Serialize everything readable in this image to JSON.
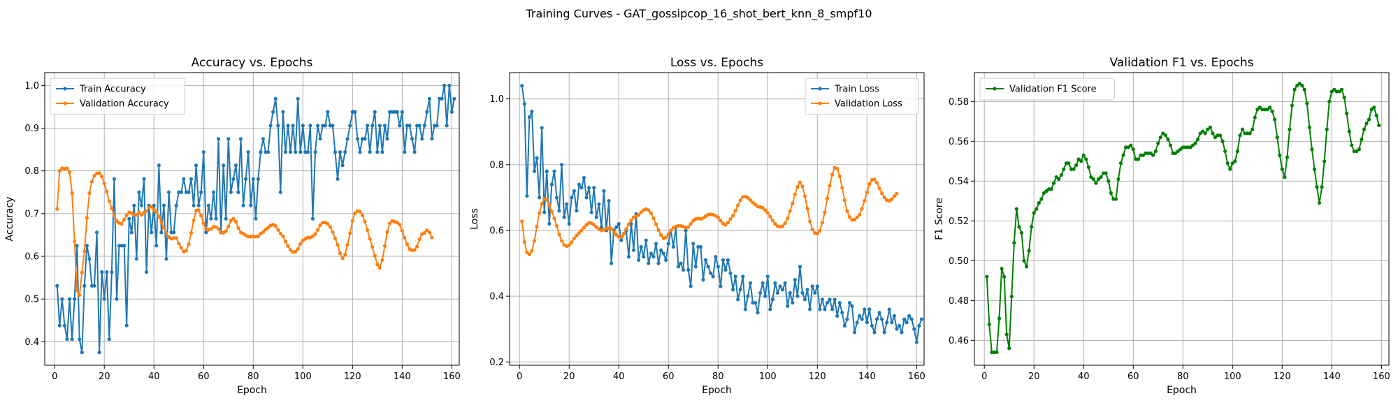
{
  "figure": {
    "suptitle": "Training Curves - GAT_gossipcop_16_shot_bert_knn_8_smpf10"
  },
  "colors": {
    "train": "#1f77b4",
    "validation": "#ff7f0e",
    "f1": "#008000",
    "grid": "#b0b0b0"
  },
  "chart_data": [
    {
      "type": "line",
      "title": "Accuracy vs. Epochs",
      "xlabel": "Epoch",
      "ylabel": "Accuracy",
      "xlim": [
        -4,
        163
      ],
      "ylim": [
        0.345,
        1.03
      ],
      "xticks": [
        0,
        20,
        40,
        60,
        80,
        100,
        120,
        140,
        160
      ],
      "yticks": [
        0.4,
        0.5,
        0.6,
        0.7,
        0.8,
        0.9,
        1.0
      ],
      "ytick_labels": [
        "0.4",
        "0.5",
        "0.6",
        "0.7",
        "0.8",
        "0.9",
        "1.0"
      ],
      "grid": true,
      "legend": "upper-left",
      "series": [
        {
          "name": "Train Accuracy",
          "color_key": "train",
          "x_start": 1,
          "values": [
            0.531,
            0.438,
            0.5,
            0.438,
            0.406,
            0.5,
            0.406,
            0.5,
            0.625,
            0.406,
            0.375,
            0.531,
            0.625,
            0.594,
            0.531,
            0.531,
            0.656,
            0.375,
            0.563,
            0.5,
            0.563,
            0.406,
            0.563,
            0.781,
            0.5,
            0.625,
            0.625,
            0.625,
            0.438,
            0.688,
            0.656,
            0.719,
            0.594,
            0.75,
            0.719,
            0.781,
            0.563,
            0.719,
            0.656,
            0.719,
            0.625,
            0.813,
            0.656,
            0.719,
            0.594,
            0.75,
            0.656,
            0.656,
            0.719,
            0.75,
            0.75,
            0.781,
            0.75,
            0.75,
            0.781,
            0.719,
            0.813,
            0.719,
            0.75,
            0.844,
            0.656,
            0.719,
            0.688,
            0.75,
            0.688,
            0.875,
            0.656,
            0.813,
            0.688,
            0.875,
            0.75,
            0.781,
            0.813,
            0.75,
            0.875,
            0.719,
            0.781,
            0.844,
            0.719,
            0.781,
            0.688,
            0.781,
            0.844,
            0.875,
            0.844,
            0.844,
            0.906,
            0.938,
            0.969,
            0.906,
            0.75,
            0.938,
            0.844,
            0.906,
            0.844,
            0.906,
            0.844,
            0.969,
            0.844,
            0.906,
            0.844,
            0.844,
            0.906,
            0.688,
            0.844,
            0.906,
            0.875,
            0.906,
            0.906,
            0.938,
            0.906,
            0.906,
            0.844,
            0.781,
            0.844,
            0.813,
            0.844,
            0.875,
            0.906,
            0.938,
            0.938,
            0.875,
            0.844,
            0.875,
            0.875,
            0.906,
            0.844,
            0.906,
            0.938,
            0.844,
            0.906,
            0.844,
            0.906,
            0.875,
            0.938,
            0.938,
            0.938,
            0.938,
            0.906,
            0.938,
            0.844,
            0.906,
            0.906,
            0.875,
            0.844,
            0.906,
            0.906,
            0.875,
            0.906,
            0.938,
            0.969,
            0.875,
            0.906,
            0.906,
            0.969,
            0.969,
            1.0,
            0.906,
            1.0,
            0.938,
            0.969
          ]
        },
        {
          "name": "Validation Accuracy",
          "color_key": "validation",
          "x_start": 1,
          "values": [
            0.711,
            0.8,
            0.806,
            0.805,
            0.806,
            0.797,
            0.748,
            0.635,
            0.52,
            0.509,
            0.562,
            0.612,
            0.69,
            0.748,
            0.775,
            0.789,
            0.794,
            0.795,
            0.787,
            0.771,
            0.751,
            0.729,
            0.712,
            0.696,
            0.683,
            0.678,
            0.676,
            0.686,
            0.696,
            0.703,
            0.701,
            0.697,
            0.697,
            0.703,
            0.697,
            0.702,
            0.706,
            0.714,
            0.716,
            0.709,
            0.703,
            0.693,
            0.68,
            0.666,
            0.654,
            0.645,
            0.641,
            0.643,
            0.643,
            0.63,
            0.62,
            0.611,
            0.613,
            0.628,
            0.655,
            0.684,
            0.707,
            0.708,
            0.695,
            0.677,
            0.663,
            0.662,
            0.664,
            0.669,
            0.669,
            0.664,
            0.657,
            0.655,
            0.659,
            0.67,
            0.684,
            0.688,
            0.681,
            0.666,
            0.656,
            0.653,
            0.649,
            0.646,
            0.646,
            0.647,
            0.646,
            0.647,
            0.653,
            0.657,
            0.663,
            0.667,
            0.672,
            0.674,
            0.671,
            0.662,
            0.653,
            0.647,
            0.635,
            0.624,
            0.615,
            0.61,
            0.611,
            0.617,
            0.629,
            0.637,
            0.641,
            0.644,
            0.644,
            0.647,
            0.652,
            0.662,
            0.673,
            0.679,
            0.679,
            0.676,
            0.669,
            0.657,
            0.642,
            0.627,
            0.607,
            0.595,
            0.604,
            0.627,
            0.654,
            0.683,
            0.701,
            0.706,
            0.705,
            0.696,
            0.681,
            0.661,
            0.641,
            0.622,
            0.601,
            0.581,
            0.573,
            0.591,
            0.624,
            0.657,
            0.677,
            0.683,
            0.681,
            0.679,
            0.674,
            0.66,
            0.643,
            0.628,
            0.617,
            0.614,
            0.615,
            0.623,
            0.64,
            0.652,
            0.655,
            0.661,
            0.656,
            0.644
          ]
        }
      ]
    },
    {
      "type": "line",
      "title": "Loss vs. Epochs",
      "xlabel": "Epoch",
      "ylabel": "Loss",
      "xlim": [
        -4,
        163
      ],
      "ylim": [
        0.19,
        1.08
      ],
      "xticks": [
        0,
        20,
        40,
        60,
        80,
        100,
        120,
        140,
        160
      ],
      "yticks": [
        0.2,
        0.4,
        0.6,
        0.8,
        1.0
      ],
      "ytick_labels": [
        "0.2",
        "0.4",
        "0.6",
        "0.8",
        "1.0"
      ],
      "grid": true,
      "legend": "upper-right",
      "series": [
        {
          "name": "Train Loss",
          "color_key": "train",
          "x_start": 1,
          "values": [
            1.04,
            0.985,
            0.705,
            0.945,
            0.962,
            0.78,
            0.82,
            0.7,
            0.912,
            0.655,
            0.78,
            0.62,
            0.74,
            0.78,
            0.7,
            0.66,
            0.8,
            0.64,
            0.68,
            0.62,
            0.7,
            0.72,
            0.66,
            0.74,
            0.73,
            0.76,
            0.7,
            0.73,
            0.655,
            0.73,
            0.64,
            0.68,
            0.61,
            0.72,
            0.6,
            0.69,
            0.5,
            0.6,
            0.61,
            0.62,
            0.57,
            0.59,
            0.6,
            0.52,
            0.62,
            0.54,
            0.65,
            0.51,
            0.55,
            0.52,
            0.57,
            0.5,
            0.53,
            0.52,
            0.56,
            0.5,
            0.54,
            0.53,
            0.51,
            0.56,
            0.6,
            0.55,
            0.61,
            0.49,
            0.5,
            0.48,
            0.6,
            0.48,
            0.43,
            0.56,
            0.49,
            0.55,
            0.55,
            0.45,
            0.51,
            0.49,
            0.47,
            0.46,
            0.52,
            0.49,
            0.43,
            0.51,
            0.48,
            0.51,
            0.47,
            0.42,
            0.46,
            0.39,
            0.42,
            0.46,
            0.36,
            0.4,
            0.44,
            0.38,
            0.38,
            0.35,
            0.41,
            0.44,
            0.4,
            0.46,
            0.36,
            0.39,
            0.44,
            0.41,
            0.43,
            0.42,
            0.44,
            0.37,
            0.41,
            0.38,
            0.45,
            0.4,
            0.49,
            0.41,
            0.39,
            0.42,
            0.36,
            0.43,
            0.41,
            0.43,
            0.36,
            0.39,
            0.36,
            0.38,
            0.39,
            0.36,
            0.39,
            0.34,
            0.38,
            0.35,
            0.31,
            0.33,
            0.38,
            0.37,
            0.29,
            0.32,
            0.34,
            0.33,
            0.36,
            0.32,
            0.36,
            0.31,
            0.29,
            0.33,
            0.35,
            0.33,
            0.29,
            0.32,
            0.36,
            0.32,
            0.34,
            0.3,
            0.31,
            0.29,
            0.33,
            0.32,
            0.34,
            0.33,
            0.3,
            0.26,
            0.31,
            0.33
          ]
        },
        {
          "name": "Validation Loss",
          "color_key": "validation",
          "x_start": 1,
          "values": [
            0.628,
            0.565,
            0.533,
            0.527,
            0.538,
            0.568,
            0.612,
            0.653,
            0.681,
            0.696,
            0.694,
            0.677,
            0.658,
            0.637,
            0.614,
            0.588,
            0.568,
            0.556,
            0.552,
            0.555,
            0.564,
            0.576,
            0.584,
            0.592,
            0.6,
            0.609,
            0.617,
            0.623,
            0.622,
            0.617,
            0.61,
            0.604,
            0.6,
            0.602,
            0.605,
            0.607,
            0.605,
            0.596,
            0.587,
            0.581,
            0.58,
            0.59,
            0.604,
            0.619,
            0.631,
            0.64,
            0.643,
            0.647,
            0.655,
            0.662,
            0.665,
            0.662,
            0.652,
            0.637,
            0.619,
            0.601,
            0.586,
            0.576,
            0.579,
            0.589,
            0.6,
            0.608,
            0.612,
            0.614,
            0.614,
            0.612,
            0.608,
            0.61,
            0.62,
            0.63,
            0.635,
            0.636,
            0.635,
            0.638,
            0.643,
            0.648,
            0.649,
            0.648,
            0.645,
            0.64,
            0.63,
            0.621,
            0.617,
            0.624,
            0.635,
            0.645,
            0.66,
            0.676,
            0.692,
            0.702,
            0.703,
            0.699,
            0.692,
            0.685,
            0.679,
            0.673,
            0.671,
            0.669,
            0.662,
            0.653,
            0.642,
            0.63,
            0.62,
            0.613,
            0.611,
            0.613,
            0.622,
            0.637,
            0.659,
            0.682,
            0.71,
            0.732,
            0.746,
            0.734,
            0.704,
            0.666,
            0.628,
            0.603,
            0.592,
            0.59,
            0.599,
            0.624,
            0.655,
            0.698,
            0.736,
            0.77,
            0.791,
            0.788,
            0.765,
            0.73,
            0.692,
            0.659,
            0.641,
            0.632,
            0.633,
            0.64,
            0.648,
            0.666,
            0.69,
            0.716,
            0.741,
            0.754,
            0.755,
            0.745,
            0.728,
            0.713,
            0.7,
            0.692,
            0.69,
            0.695,
            0.704,
            0.712
          ]
        }
      ]
    },
    {
      "type": "line",
      "title": "Validation F1 vs. Epochs",
      "xlabel": "Epoch",
      "ylabel": "F1 Score",
      "xlim": [
        -4,
        163
      ],
      "ylim": [
        0.4475,
        0.5945
      ],
      "xticks": [
        0,
        20,
        40,
        60,
        80,
        100,
        120,
        140,
        160
      ],
      "yticks": [
        0.46,
        0.48,
        0.5,
        0.52,
        0.54,
        0.56,
        0.58
      ],
      "ytick_labels": [
        "0.46",
        "0.48",
        "0.50",
        "0.52",
        "0.54",
        "0.56",
        "0.58"
      ],
      "grid": true,
      "legend": "upper-left",
      "series": [
        {
          "name": "Validation F1 Score",
          "color_key": "f1",
          "x_start": 1,
          "values": [
            0.492,
            0.468,
            0.454,
            0.454,
            0.454,
            0.471,
            0.496,
            0.492,
            0.463,
            0.456,
            0.482,
            0.509,
            0.526,
            0.517,
            0.514,
            0.5,
            0.497,
            0.505,
            0.517,
            0.524,
            0.526,
            0.529,
            0.531,
            0.534,
            0.535,
            0.536,
            0.536,
            0.539,
            0.542,
            0.541,
            0.543,
            0.546,
            0.549,
            0.549,
            0.546,
            0.546,
            0.548,
            0.551,
            0.55,
            0.553,
            0.551,
            0.547,
            0.542,
            0.541,
            0.539,
            0.541,
            0.542,
            0.544,
            0.544,
            0.54,
            0.534,
            0.531,
            0.531,
            0.541,
            0.549,
            0.553,
            0.557,
            0.557,
            0.558,
            0.556,
            0.551,
            0.551,
            0.553,
            0.553,
            0.554,
            0.554,
            0.554,
            0.553,
            0.555,
            0.559,
            0.562,
            0.564,
            0.563,
            0.561,
            0.558,
            0.554,
            0.554,
            0.555,
            0.556,
            0.557,
            0.557,
            0.557,
            0.557,
            0.558,
            0.559,
            0.561,
            0.564,
            0.565,
            0.564,
            0.566,
            0.567,
            0.564,
            0.562,
            0.563,
            0.563,
            0.56,
            0.555,
            0.549,
            0.546,
            0.549,
            0.55,
            0.555,
            0.563,
            0.566,
            0.564,
            0.564,
            0.564,
            0.566,
            0.572,
            0.576,
            0.577,
            0.576,
            0.576,
            0.576,
            0.577,
            0.575,
            0.571,
            0.562,
            0.553,
            0.546,
            0.542,
            0.552,
            0.566,
            0.578,
            0.586,
            0.588,
            0.589,
            0.588,
            0.586,
            0.579,
            0.567,
            0.556,
            0.546,
            0.537,
            0.529,
            0.537,
            0.55,
            0.566,
            0.58,
            0.585,
            0.586,
            0.585,
            0.585,
            0.586,
            0.582,
            0.574,
            0.565,
            0.558,
            0.555,
            0.555,
            0.556,
            0.561,
            0.566,
            0.569,
            0.571,
            0.576,
            0.577,
            0.573,
            0.568
          ]
        }
      ]
    }
  ]
}
